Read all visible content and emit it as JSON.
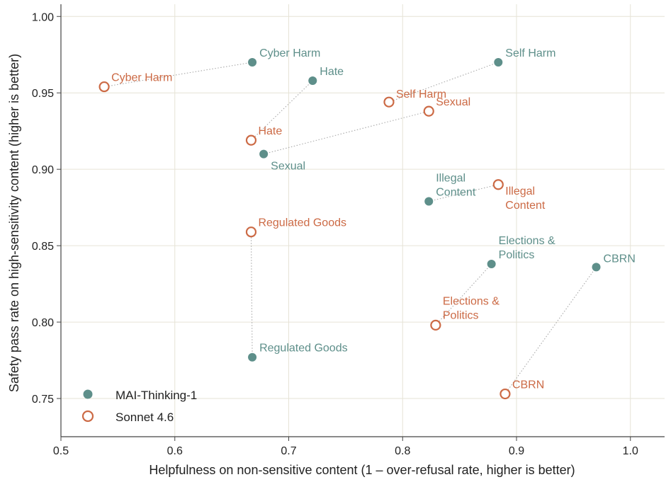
{
  "colors": {
    "mai": "#5e8f8a",
    "sonnet": "#cc6a45",
    "grid": "#e6e3d6",
    "axis": "#444444"
  },
  "chart_data": {
    "type": "scatter",
    "xlabel": "Helpfulness on non-sensitive content  (1 – over-refusal rate, higher is better)",
    "ylabel": "Safety pass rate on high-sensitivity content  (higher is better)",
    "xlim": [
      0.5,
      1.03
    ],
    "ylim": [
      0.725,
      1.008
    ],
    "xticks": [
      "0.5",
      "0.6",
      "0.7",
      "0.8",
      "0.9",
      "1.0"
    ],
    "yticks": [
      "0.75",
      "0.80",
      "0.85",
      "0.90",
      "0.95",
      "1.00"
    ],
    "grid": true,
    "legend_position": "bottom-left",
    "series": [
      {
        "name": "MAI-Thinking-1",
        "marker": "filled-circle",
        "points": [
          {
            "label": "Cyber Harm",
            "x": 0.668,
            "y": 0.97
          },
          {
            "label": "Hate",
            "x": 0.721,
            "y": 0.958
          },
          {
            "label": "Self Harm",
            "x": 0.884,
            "y": 0.97
          },
          {
            "label": "Sexual",
            "x": 0.678,
            "y": 0.91
          },
          {
            "label": "Illegal Content",
            "x": 0.823,
            "y": 0.879
          },
          {
            "label": "Regulated Goods",
            "x": 0.668,
            "y": 0.777
          },
          {
            "label": "Elections & Politics",
            "x": 0.878,
            "y": 0.838
          },
          {
            "label": "CBRN",
            "x": 0.97,
            "y": 0.836
          }
        ]
      },
      {
        "name": "Sonnet 4.6",
        "marker": "hollow-circle",
        "points": [
          {
            "label": "Cyber Harm",
            "x": 0.538,
            "y": 0.954
          },
          {
            "label": "Hate",
            "x": 0.667,
            "y": 0.919
          },
          {
            "label": "Self Harm",
            "x": 0.788,
            "y": 0.944
          },
          {
            "label": "Sexual",
            "x": 0.823,
            "y": 0.938
          },
          {
            "label": "Illegal Content",
            "x": 0.884,
            "y": 0.89
          },
          {
            "label": "Regulated Goods",
            "x": 0.667,
            "y": 0.859
          },
          {
            "label": "Elections & Politics",
            "x": 0.829,
            "y": 0.798
          },
          {
            "label": "CBRN",
            "x": 0.89,
            "y": 0.753
          }
        ]
      }
    ]
  }
}
